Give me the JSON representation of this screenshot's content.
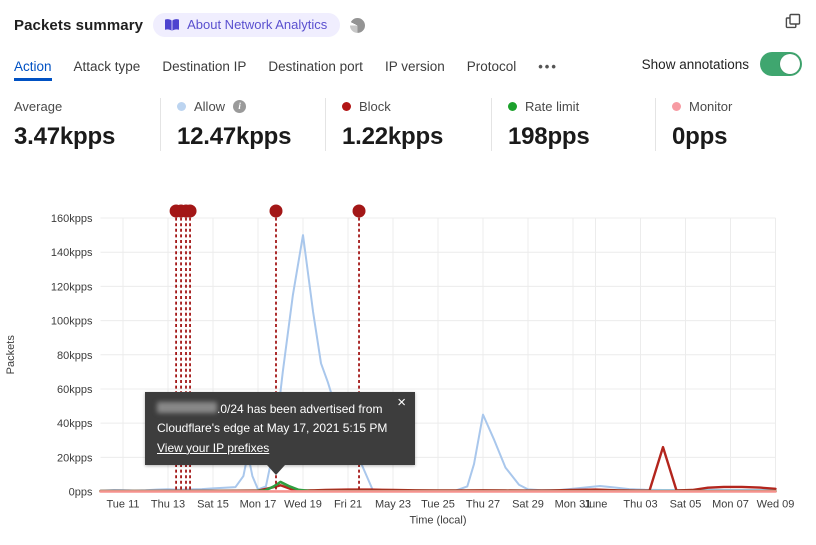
{
  "header": {
    "title": "Packets summary",
    "badge_label": "About Network Analytics",
    "icons": [
      "book-icon",
      "pie-chart-icon",
      "copy-icon"
    ]
  },
  "tabs": {
    "items": [
      "Action",
      "Attack type",
      "Destination IP",
      "Destination port",
      "IP version",
      "Protocol"
    ],
    "active": "Action",
    "more_label": "•••",
    "show_annotations_label": "Show annotations",
    "show_annotations_on": true,
    "toggle_color": "#3fa66f",
    "active_color": "#0051c3"
  },
  "stats": [
    {
      "label": "Average",
      "value": "3.47kpps",
      "dot": null,
      "info": false
    },
    {
      "label": "Allow",
      "value": "12.47kpps",
      "dot": "#bcd4f0",
      "info": true
    },
    {
      "label": "Block",
      "value": "1.22kpps",
      "dot": "#b21515",
      "info": false
    },
    {
      "label": "Rate limit",
      "value": "198pps",
      "dot": "#1ca12c",
      "info": false
    },
    {
      "label": "Monitor",
      "value": "0pps",
      "dot": "#f79ba3",
      "info": false
    }
  ],
  "tooltip": {
    "line1_suffix": ".0/24 has been advertised from",
    "line2": "Cloudflare's edge at May 17, 2021 5:15 PM",
    "link": "View your IP prefixes",
    "close": "×"
  },
  "chart_data": {
    "type": "line",
    "xlabel": "Time (local)",
    "ylabel": "Packets",
    "x_start_date": "May 10, 2021",
    "x_domain_days": [
      0,
      30
    ],
    "ylim": [
      0,
      160
    ],
    "grid": true,
    "y_ticks": [
      {
        "v": 0,
        "label": "0pps"
      },
      {
        "v": 20,
        "label": "20kpps"
      },
      {
        "v": 40,
        "label": "40kpps"
      },
      {
        "v": 60,
        "label": "60kpps"
      },
      {
        "v": 80,
        "label": "80kpps"
      },
      {
        "v": 100,
        "label": "100kpps"
      },
      {
        "v": 120,
        "label": "120kpps"
      },
      {
        "v": 140,
        "label": "140kpps"
      },
      {
        "v": 160,
        "label": "160kpps"
      }
    ],
    "x_ticks": [
      {
        "d": 1,
        "label": "Tue 11"
      },
      {
        "d": 3,
        "label": "Thu 13"
      },
      {
        "d": 5,
        "label": "Sat 15"
      },
      {
        "d": 7,
        "label": "Mon 17"
      },
      {
        "d": 9,
        "label": "Wed 19"
      },
      {
        "d": 11,
        "label": "Fri 21"
      },
      {
        "d": 13,
        "label": "May 23"
      },
      {
        "d": 15,
        "label": "Tue 25"
      },
      {
        "d": 17,
        "label": "Thu 27"
      },
      {
        "d": 19,
        "label": "Sat 29"
      },
      {
        "d": 21,
        "label": "Mon 31"
      },
      {
        "d": 22,
        "label": "June"
      },
      {
        "d": 24,
        "label": "Thu 03"
      },
      {
        "d": 26,
        "label": "Sat 05"
      },
      {
        "d": 28,
        "label": "Mon 07"
      },
      {
        "d": 30,
        "label": "Wed 09"
      }
    ],
    "series": [
      {
        "name": "Allow",
        "color": "#a9c7ec",
        "width": 2,
        "unit": "kpps",
        "points": [
          [
            0,
            0.4
          ],
          [
            0.6,
            0.9
          ],
          [
            1,
            0.8
          ],
          [
            1.5,
            0.5
          ],
          [
            2,
            0.7
          ],
          [
            2.5,
            1.1
          ],
          [
            3,
            1.3
          ],
          [
            3.5,
            1.0
          ],
          [
            4,
            1.2
          ],
          [
            4.5,
            1.4
          ],
          [
            5,
            1.8
          ],
          [
            5.5,
            2.2
          ],
          [
            6,
            2.6
          ],
          [
            6.35,
            9
          ],
          [
            6.55,
            22
          ],
          [
            6.75,
            9
          ],
          [
            7.0,
            1.2
          ],
          [
            7.35,
            3
          ],
          [
            7.7,
            25
          ],
          [
            8.1,
            70
          ],
          [
            8.55,
            115
          ],
          [
            9.0,
            150
          ],
          [
            9.45,
            105
          ],
          [
            9.8,
            75
          ],
          [
            10.1,
            64
          ],
          [
            10.5,
            47
          ],
          [
            11.0,
            30
          ],
          [
            11.6,
            16
          ],
          [
            12.1,
            0.8
          ],
          [
            12.6,
            0.5
          ],
          [
            13,
            0.5
          ],
          [
            14,
            0.5
          ],
          [
            15,
            0.5
          ],
          [
            15.8,
            0.6
          ],
          [
            16.3,
            3
          ],
          [
            16.6,
            16
          ],
          [
            17.0,
            45
          ],
          [
            17.5,
            30
          ],
          [
            18.0,
            14
          ],
          [
            18.6,
            4
          ],
          [
            19.0,
            1.2
          ],
          [
            19.6,
            0.7
          ],
          [
            20.4,
            0.9
          ],
          [
            21,
            1.6
          ],
          [
            21.7,
            2.6
          ],
          [
            22.2,
            3.2
          ],
          [
            22.8,
            2.4
          ],
          [
            23.5,
            1.4
          ],
          [
            24.2,
            1.0
          ],
          [
            25,
            0.9
          ],
          [
            26,
            0.9
          ],
          [
            27,
            1.0
          ],
          [
            28,
            0.9
          ],
          [
            29,
            0.9
          ],
          [
            30,
            0.9
          ]
        ]
      },
      {
        "name": "Block",
        "color": "#b3251d",
        "width": 2.4,
        "unit": "kpps",
        "points": [
          [
            0,
            0.35
          ],
          [
            1,
            0.35
          ],
          [
            2,
            0.35
          ],
          [
            3,
            0.4
          ],
          [
            4,
            0.4
          ],
          [
            5,
            0.4
          ],
          [
            6,
            0.45
          ],
          [
            7,
            0.5
          ],
          [
            7.6,
            2.2
          ],
          [
            8,
            3.6
          ],
          [
            8.5,
            1.2
          ],
          [
            9,
            0.6
          ],
          [
            9.5,
            0.7
          ],
          [
            10,
            0.9
          ],
          [
            11,
            1.1
          ],
          [
            12,
            1.1
          ],
          [
            13,
            0.9
          ],
          [
            14,
            0.7
          ],
          [
            15,
            0.6
          ],
          [
            16,
            0.6
          ],
          [
            17,
            0.7
          ],
          [
            18,
            0.6
          ],
          [
            19,
            0.5
          ],
          [
            20,
            0.6
          ],
          [
            21,
            0.9
          ],
          [
            22,
            1.1
          ],
          [
            23,
            0.7
          ],
          [
            24,
            0.5
          ],
          [
            24.4,
            0.5
          ],
          [
            25,
            26
          ],
          [
            25.6,
            0.6
          ],
          [
            26.3,
            0.9
          ],
          [
            27,
            2.2
          ],
          [
            27.7,
            2.7
          ],
          [
            28.5,
            2.7
          ],
          [
            29.3,
            2.3
          ],
          [
            30,
            1.6
          ]
        ]
      },
      {
        "name": "Rate limit",
        "color": "#2f9e3f",
        "width": 2.6,
        "unit": "kpps",
        "points": [
          [
            0,
            0.15
          ],
          [
            5,
            0.15
          ],
          [
            6.8,
            0.2
          ],
          [
            7.3,
            0.5
          ],
          [
            7.7,
            3
          ],
          [
            8.0,
            5.6
          ],
          [
            8.4,
            3
          ],
          [
            8.8,
            1
          ],
          [
            9.3,
            0.3
          ],
          [
            10,
            0.2
          ],
          [
            12,
            0.15
          ],
          [
            15,
            0.15
          ],
          [
            20,
            0.15
          ],
          [
            25,
            0.15
          ],
          [
            30,
            0.15
          ]
        ]
      },
      {
        "name": "Monitor",
        "color": "#f5928e",
        "width": 2.6,
        "unit": "kpps",
        "points": [
          [
            0,
            0.05
          ],
          [
            30,
            0.05
          ]
        ]
      }
    ],
    "annotations": {
      "color": "#a31717",
      "days": [
        3.36,
        3.58,
        3.8,
        3.98,
        7.8,
        11.49
      ]
    }
  }
}
